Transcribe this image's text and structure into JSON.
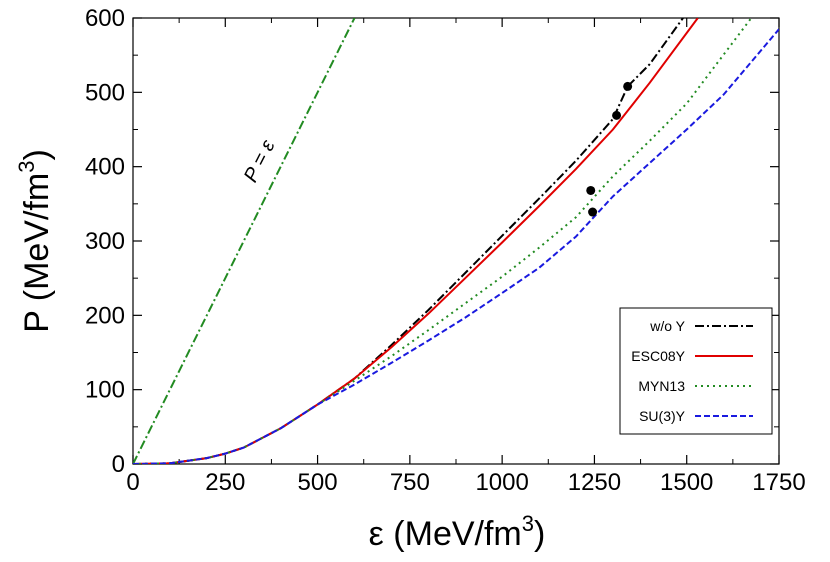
{
  "chart_data": {
    "type": "line",
    "title": "",
    "xlabel": {
      "symbol": "ε",
      "unit": "(MeV/fm",
      "sup": "3",
      "close": ")"
    },
    "ylabel": {
      "symbol": "P",
      "unit": "(MeV/fm",
      "sup": "3",
      "close": ")"
    },
    "xlim": [
      0,
      1750
    ],
    "ylim": [
      0,
      600
    ],
    "xticks": [
      0,
      250,
      500,
      750,
      1000,
      1250,
      1500,
      1750
    ],
    "yticks": [
      0,
      100,
      200,
      300,
      400,
      500,
      600
    ],
    "grid": false,
    "legend_position": "bottom-right",
    "annotation": {
      "text": "P = ε",
      "on_line": "causal_limit"
    },
    "causal_limit": {
      "label": "P = ε",
      "color": "#228B22",
      "dash": "dashdot",
      "x": [
        0,
        600
      ],
      "y": [
        0,
        600
      ]
    },
    "series": [
      {
        "name": "w/o Y",
        "color": "#000000",
        "dash": "dashdot",
        "x": [
          0,
          100,
          200,
          250,
          300,
          400,
          500,
          600,
          700,
          800,
          900,
          1000,
          1100,
          1200,
          1300,
          1340,
          1400,
          1490
        ],
        "y": [
          0,
          1,
          8,
          14,
          22,
          48,
          80,
          115,
          160,
          207,
          257,
          307,
          357,
          408,
          464,
          508,
          538,
          600
        ],
        "marker": {
          "x": 1340,
          "y": 508
        }
      },
      {
        "name": "ESC08Y",
        "color": "#e00000",
        "dash": "solid",
        "x": [
          0,
          100,
          200,
          250,
          300,
          400,
          500,
          600,
          700,
          800,
          900,
          1000,
          1100,
          1200,
          1300,
          1400,
          1530
        ],
        "y": [
          0,
          1,
          8,
          14,
          22,
          48,
          80,
          115,
          157,
          202,
          250,
          298,
          347,
          397,
          450,
          513,
          600
        ],
        "marker": {
          "x": 1310,
          "y": 469
        }
      },
      {
        "name": "MYN13",
        "color": "#228B22",
        "dash": "dotted",
        "x": [
          0,
          100,
          200,
          250,
          300,
          400,
          500,
          600,
          700,
          800,
          900,
          1000,
          1100,
          1200,
          1300,
          1400,
          1500,
          1675
        ],
        "y": [
          0,
          1,
          8,
          14,
          22,
          48,
          80,
          112,
          145,
          180,
          216,
          252,
          291,
          332,
          387,
          435,
          485,
          600
        ],
        "marker": {
          "x": 1240,
          "y": 368
        }
      },
      {
        "name": "SU(3)Y",
        "color": "#1a1adf",
        "dash": "dashed",
        "x": [
          0,
          100,
          200,
          250,
          300,
          400,
          500,
          600,
          700,
          800,
          900,
          1000,
          1100,
          1200,
          1300,
          1400,
          1500,
          1600,
          1750
        ],
        "y": [
          0,
          1,
          8,
          14,
          22,
          48,
          80,
          107,
          136,
          166,
          197,
          230,
          264,
          306,
          360,
          405,
          450,
          497,
          585
        ],
        "marker": {
          "x": 1245,
          "y": 339
        }
      }
    ]
  }
}
